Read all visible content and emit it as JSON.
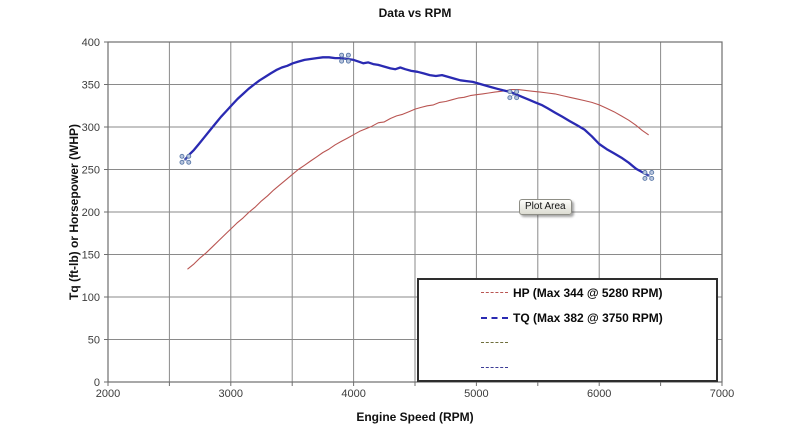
{
  "title": "Data vs RPM",
  "axes": {
    "x": {
      "label": "Engine Speed (RPM)",
      "ticks": [
        "2000",
        "3000",
        "4000",
        "5000",
        "6000",
        "7000"
      ]
    },
    "y": {
      "label": "Tq (ft-lb) or Horsepower (WHP)",
      "ticks": [
        "0",
        "50",
        "100",
        "150",
        "200",
        "250",
        "300",
        "350",
        "400"
      ]
    }
  },
  "tooltip": {
    "text": "Plot Area"
  },
  "colors": {
    "grid": "#8a8a8a",
    "axis": "#6e6e6e",
    "tick_text": "#3c3c3c",
    "hp_line": "#b95552",
    "tq_line": "#2a2ab2",
    "legend_item3": "#6e6e3c",
    "legend_item4": "#3c3c96",
    "marker_fill": "#b9c6de",
    "marker_stroke": "#5b79a8"
  },
  "chart_data": {
    "type": "line",
    "title": "Data vs RPM",
    "xlabel": "Engine Speed (RPM)",
    "ylabel": "Tq (ft-lb) or Horsepower (WHP)",
    "xlim": [
      2000,
      7000
    ],
    "ylim": [
      0,
      400
    ],
    "x_grid_step": 500,
    "x_label_step": 1000,
    "y_grid_step": 50,
    "grid": true,
    "legend_position": "bottom-right",
    "series": [
      {
        "name": "HP (Max 344 @ 5280 RPM)",
        "max": 344,
        "max_rpm": 5280,
        "color": "#b95552",
        "width": 1.1,
        "points": [
          [
            2650,
            133
          ],
          [
            2700,
            139
          ],
          [
            2750,
            146
          ],
          [
            2800,
            152
          ],
          [
            2850,
            159
          ],
          [
            2900,
            166
          ],
          [
            2950,
            173
          ],
          [
            3000,
            180
          ],
          [
            3050,
            187
          ],
          [
            3100,
            193
          ],
          [
            3150,
            200
          ],
          [
            3200,
            206
          ],
          [
            3250,
            213
          ],
          [
            3300,
            219
          ],
          [
            3350,
            226
          ],
          [
            3400,
            232
          ],
          [
            3450,
            238
          ],
          [
            3500,
            244
          ],
          [
            3550,
            250
          ],
          [
            3600,
            255
          ],
          [
            3650,
            260
          ],
          [
            3700,
            265
          ],
          [
            3750,
            270
          ],
          [
            3800,
            274
          ],
          [
            3850,
            279
          ],
          [
            3900,
            283
          ],
          [
            3950,
            287
          ],
          [
            4000,
            291
          ],
          [
            4050,
            295
          ],
          [
            4100,
            298
          ],
          [
            4150,
            301
          ],
          [
            4200,
            305
          ],
          [
            4250,
            306
          ],
          [
            4300,
            310
          ],
          [
            4350,
            313
          ],
          [
            4400,
            315
          ],
          [
            4450,
            318
          ],
          [
            4500,
            321
          ],
          [
            4550,
            323
          ],
          [
            4600,
            325
          ],
          [
            4650,
            326
          ],
          [
            4700,
            329
          ],
          [
            4750,
            330
          ],
          [
            4800,
            332
          ],
          [
            4850,
            334
          ],
          [
            4900,
            335
          ],
          [
            4950,
            337
          ],
          [
            5000,
            338
          ],
          [
            5050,
            339
          ],
          [
            5100,
            340
          ],
          [
            5150,
            341
          ],
          [
            5200,
            342
          ],
          [
            5250,
            343
          ],
          [
            5280,
            344
          ],
          [
            5340,
            344
          ],
          [
            5400,
            343
          ],
          [
            5460,
            342
          ],
          [
            5520,
            341
          ],
          [
            5580,
            340
          ],
          [
            5640,
            339
          ],
          [
            5700,
            337
          ],
          [
            5760,
            335
          ],
          [
            5820,
            333
          ],
          [
            5880,
            331
          ],
          [
            5940,
            329
          ],
          [
            6000,
            326
          ],
          [
            6060,
            322
          ],
          [
            6120,
            318
          ],
          [
            6180,
            313
          ],
          [
            6240,
            308
          ],
          [
            6300,
            302
          ],
          [
            6350,
            296
          ],
          [
            6400,
            291
          ]
        ]
      },
      {
        "name": "TQ (Max 382 @ 3750 RPM)",
        "max": 382,
        "max_rpm": 3750,
        "color": "#2a2ab2",
        "width": 2.3,
        "points": [
          [
            2630,
            262
          ],
          [
            2665,
            268
          ],
          [
            2700,
            273
          ],
          [
            2740,
            280
          ],
          [
            2785,
            288
          ],
          [
            2830,
            296
          ],
          [
            2875,
            304
          ],
          [
            2920,
            312
          ],
          [
            2965,
            319
          ],
          [
            3010,
            326
          ],
          [
            3055,
            333
          ],
          [
            3100,
            339
          ],
          [
            3145,
            345
          ],
          [
            3190,
            350
          ],
          [
            3235,
            355
          ],
          [
            3280,
            359
          ],
          [
            3325,
            363
          ],
          [
            3370,
            367
          ],
          [
            3415,
            370
          ],
          [
            3460,
            372
          ],
          [
            3505,
            375
          ],
          [
            3550,
            377
          ],
          [
            3600,
            379
          ],
          [
            3650,
            380
          ],
          [
            3700,
            381
          ],
          [
            3750,
            382
          ],
          [
            3800,
            382
          ],
          [
            3850,
            381
          ],
          [
            3900,
            381
          ],
          [
            3950,
            380
          ],
          [
            4000,
            379
          ],
          [
            4040,
            377
          ],
          [
            4080,
            375
          ],
          [
            4120,
            376
          ],
          [
            4160,
            374
          ],
          [
            4200,
            373
          ],
          [
            4250,
            371
          ],
          [
            4300,
            369
          ],
          [
            4340,
            368
          ],
          [
            4380,
            370
          ],
          [
            4420,
            368
          ],
          [
            4470,
            366
          ],
          [
            4520,
            365
          ],
          [
            4570,
            363
          ],
          [
            4620,
            361
          ],
          [
            4670,
            360
          ],
          [
            4720,
            361
          ],
          [
            4770,
            359
          ],
          [
            4820,
            357
          ],
          [
            4870,
            355
          ],
          [
            4920,
            354
          ],
          [
            4970,
            353
          ],
          [
            5020,
            351
          ],
          [
            5070,
            349
          ],
          [
            5120,
            347
          ],
          [
            5170,
            345
          ],
          [
            5220,
            343
          ],
          [
            5280,
            341
          ],
          [
            5330,
            338
          ],
          [
            5380,
            335
          ],
          [
            5430,
            332
          ],
          [
            5480,
            329
          ],
          [
            5530,
            326
          ],
          [
            5580,
            322
          ],
          [
            5640,
            317
          ],
          [
            5700,
            312
          ],
          [
            5760,
            307
          ],
          [
            5820,
            302
          ],
          [
            5880,
            297
          ],
          [
            5940,
            289
          ],
          [
            6000,
            280
          ],
          [
            6060,
            274
          ],
          [
            6120,
            269
          ],
          [
            6180,
            264
          ],
          [
            6240,
            258
          ],
          [
            6300,
            251
          ],
          [
            6350,
            247
          ],
          [
            6400,
            243
          ]
        ]
      },
      {
        "name": "",
        "color": "#6e6e3c",
        "width": 1,
        "points": []
      },
      {
        "name": "",
        "color": "#3c3c96",
        "width": 1,
        "points": []
      }
    ],
    "selected_markers": [
      [
        2630,
        262
      ],
      [
        3930,
        381
      ],
      [
        5300,
        338
      ],
      [
        6400,
        243
      ]
    ]
  }
}
